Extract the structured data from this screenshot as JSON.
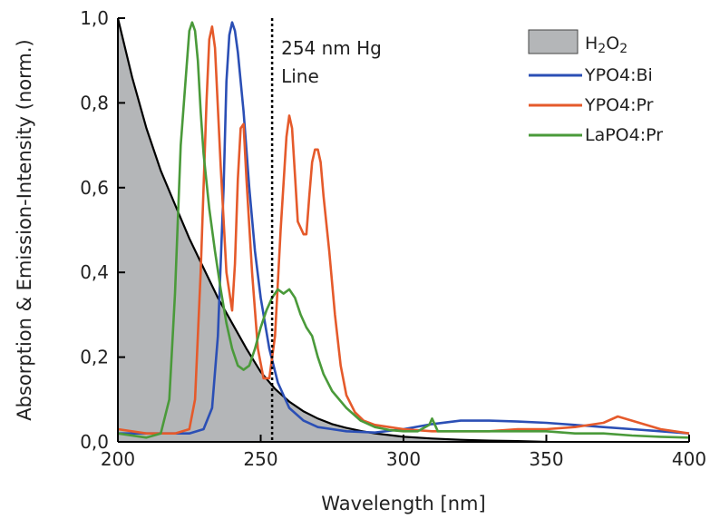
{
  "chart_data": {
    "type": "line",
    "title": "",
    "xlabel": "Wavelength [nm]",
    "ylabel": "Absorption & Emission-Intensity (norm.)",
    "xlim": [
      200,
      400
    ],
    "ylim": [
      0.0,
      1.0
    ],
    "x_ticks": [
      200,
      250,
      300,
      350,
      400
    ],
    "x_tick_labels": [
      "200",
      "250",
      "300",
      "350",
      "400"
    ],
    "y_ticks": [
      0.0,
      0.2,
      0.4,
      0.6,
      0.8,
      1.0
    ],
    "y_tick_labels": [
      "0,0",
      "0,2",
      "0,4",
      "0,6",
      "0,8",
      "1,0"
    ],
    "grid": false,
    "legend_position": "top-right",
    "annotation": {
      "line1": "254 nm Hg",
      "line2": "Line",
      "x": 254
    },
    "absorption": {
      "name_base": "H",
      "name_sub1": "2",
      "name_mid": "O",
      "name_sub2": "2",
      "color": "#b4b6b8",
      "edge_color": "#000000",
      "x": [
        200,
        205,
        210,
        215,
        220,
        225,
        230,
        235,
        240,
        245,
        250,
        255,
        260,
        265,
        270,
        275,
        280,
        285,
        290,
        295,
        300,
        310,
        320,
        330,
        340,
        350
      ],
      "y": [
        1.0,
        0.86,
        0.74,
        0.64,
        0.56,
        0.48,
        0.41,
        0.34,
        0.28,
        0.22,
        0.165,
        0.125,
        0.095,
        0.072,
        0.055,
        0.042,
        0.033,
        0.026,
        0.02,
        0.016,
        0.012,
        0.008,
        0.005,
        0.003,
        0.002,
        0.0
      ]
    },
    "series": [
      {
        "name": "YPO4:Bi",
        "color": "#2b4fb5",
        "x": [
          200,
          225,
          230,
          233,
          235,
          237,
          238,
          239,
          240,
          241,
          242,
          244,
          246,
          248,
          250,
          253,
          256,
          260,
          265,
          270,
          275,
          280,
          290,
          300,
          310,
          320,
          330,
          340,
          350,
          360,
          370,
          380,
          390,
          400
        ],
        "y": [
          0.02,
          0.02,
          0.03,
          0.08,
          0.25,
          0.6,
          0.85,
          0.96,
          0.99,
          0.97,
          0.92,
          0.78,
          0.6,
          0.45,
          0.34,
          0.22,
          0.14,
          0.08,
          0.05,
          0.035,
          0.03,
          0.025,
          0.022,
          0.03,
          0.042,
          0.05,
          0.05,
          0.048,
          0.045,
          0.04,
          0.035,
          0.03,
          0.025,
          0.02
        ]
      },
      {
        "name": "YPO4:Pr",
        "color": "#e55a2b",
        "x": [
          200,
          210,
          220,
          225,
          227,
          229,
          231,
          232,
          233,
          234,
          236,
          238,
          240,
          241,
          242,
          243,
          244,
          245,
          247,
          249,
          251,
          253,
          255,
          257,
          259,
          260,
          261,
          262,
          263,
          265,
          266,
          267,
          268,
          269,
          270,
          271,
          272,
          274,
          276,
          278,
          280,
          283,
          286,
          290,
          300,
          310,
          320,
          330,
          340,
          350,
          360,
          370,
          375,
          380,
          390,
          400
        ],
        "y": [
          0.03,
          0.02,
          0.02,
          0.03,
          0.1,
          0.4,
          0.8,
          0.95,
          0.98,
          0.93,
          0.65,
          0.4,
          0.31,
          0.42,
          0.62,
          0.74,
          0.75,
          0.62,
          0.4,
          0.22,
          0.15,
          0.15,
          0.25,
          0.5,
          0.72,
          0.77,
          0.74,
          0.63,
          0.52,
          0.49,
          0.49,
          0.58,
          0.66,
          0.69,
          0.69,
          0.66,
          0.58,
          0.45,
          0.3,
          0.18,
          0.11,
          0.07,
          0.05,
          0.04,
          0.03,
          0.025,
          0.025,
          0.025,
          0.03,
          0.03,
          0.035,
          0.045,
          0.06,
          0.05,
          0.03,
          0.02
        ]
      },
      {
        "name": "LaPO4:Pr",
        "color": "#4a9a3a",
        "x": [
          200,
          210,
          215,
          218,
          220,
          222,
          224,
          225,
          226,
          227,
          228,
          229,
          230,
          232,
          234,
          236,
          238,
          240,
          242,
          244,
          246,
          248,
          250,
          252,
          254,
          256,
          258,
          260,
          262,
          264,
          266,
          268,
          270,
          272,
          275,
          280,
          285,
          290,
          295,
          300,
          305,
          309,
          310,
          311,
          312,
          315,
          320,
          330,
          340,
          350,
          360,
          370,
          380,
          390,
          400
        ],
        "y": [
          0.02,
          0.01,
          0.02,
          0.1,
          0.35,
          0.7,
          0.88,
          0.97,
          0.99,
          0.97,
          0.9,
          0.78,
          0.68,
          0.55,
          0.45,
          0.36,
          0.28,
          0.22,
          0.18,
          0.17,
          0.18,
          0.22,
          0.27,
          0.31,
          0.34,
          0.36,
          0.35,
          0.36,
          0.34,
          0.3,
          0.27,
          0.25,
          0.2,
          0.16,
          0.12,
          0.08,
          0.05,
          0.035,
          0.028,
          0.025,
          0.025,
          0.04,
          0.055,
          0.04,
          0.025,
          0.025,
          0.025,
          0.025,
          0.025,
          0.025,
          0.02,
          0.02,
          0.015,
          0.012,
          0.01
        ]
      }
    ]
  }
}
